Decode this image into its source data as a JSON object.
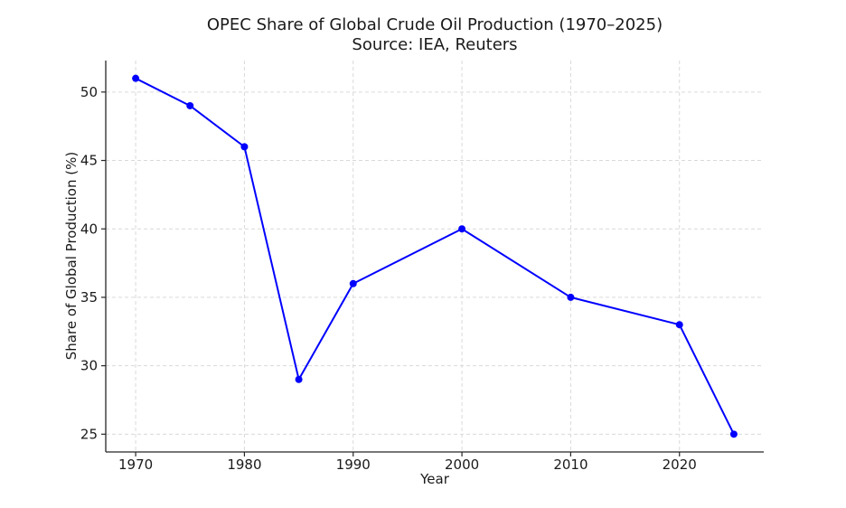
{
  "chart_data": {
    "type": "line",
    "title": "OPEC Share of Global Crude Oil Production (1970–2025)",
    "subtitle": "Source: IEA, Reuters",
    "xlabel": "Year",
    "ylabel": "Share of Global Production (%)",
    "series": [
      {
        "name": "OPEC share",
        "x": [
          1970,
          1975,
          1980,
          1985,
          1990,
          2000,
          2010,
          2020,
          2025
        ],
        "y": [
          51,
          49,
          46,
          29,
          36,
          40,
          35,
          33,
          25
        ]
      }
    ],
    "x_tick_values": [
      1970,
      1980,
      1990,
      2000,
      2010,
      2020
    ],
    "x_tick_labels": [
      "1970",
      "1980",
      "1990",
      "2000",
      "2010",
      "2020"
    ],
    "y_tick_values": [
      25,
      30,
      35,
      40,
      45,
      50
    ],
    "y_tick_labels": [
      "25",
      "30",
      "35",
      "40",
      "45",
      "50"
    ],
    "xlim": [
      1967.25,
      2027.75
    ],
    "ylim": [
      23.7,
      52.3
    ],
    "grid": true,
    "legend": "none",
    "line_color": "#0000ff",
    "marker_style": "circle",
    "grid_color": "#d9d9d9",
    "axis_color": "#262626",
    "text_color": "#1a1a1a",
    "background_color": "#ffffff"
  }
}
